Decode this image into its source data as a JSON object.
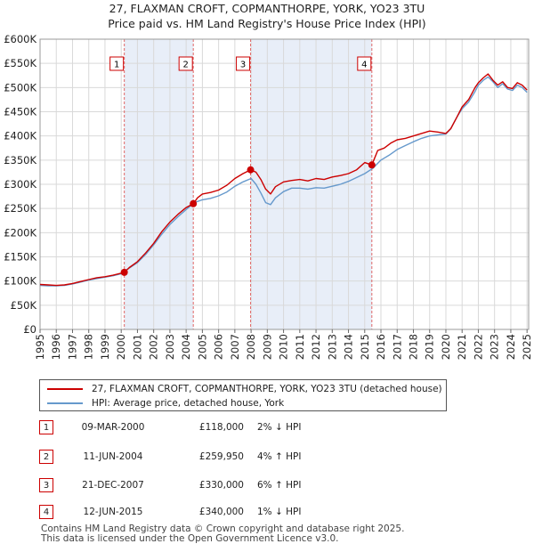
{
  "chart_data": {
    "type": "line",
    "title": "27, FLAXMAN CROFT, COPMANTHORPE, YORK, YO23 3TU",
    "subtitle": "Price paid vs. HM Land Registry's House Price Index (HPI)",
    "xlim": [
      1995,
      2025.1
    ],
    "ylim": [
      0,
      600000
    ],
    "x_ticks": [
      "1995",
      "1996",
      "1997",
      "1998",
      "1999",
      "2000",
      "2001",
      "2002",
      "2003",
      "2004",
      "2005",
      "2006",
      "2007",
      "2008",
      "2009",
      "2010",
      "2011",
      "2012",
      "2013",
      "2014",
      "2015",
      "2016",
      "2017",
      "2018",
      "2019",
      "2020",
      "2021",
      "2022",
      "2023",
      "2024",
      "2025"
    ],
    "y_ticks": [
      {
        "value": 0,
        "label": "£0"
      },
      {
        "value": 50000,
        "label": "£50K"
      },
      {
        "value": 100000,
        "label": "£100K"
      },
      {
        "value": 150000,
        "label": "£150K"
      },
      {
        "value": 200000,
        "label": "£200K"
      },
      {
        "value": 250000,
        "label": "£250K"
      },
      {
        "value": 300000,
        "label": "£300K"
      },
      {
        "value": 350000,
        "label": "£350K"
      },
      {
        "value": 400000,
        "label": "£400K"
      },
      {
        "value": 450000,
        "label": "£450K"
      },
      {
        "value": 500000,
        "label": "£500K"
      },
      {
        "value": 550000,
        "label": "£550K"
      },
      {
        "value": 600000,
        "label": "£600K"
      }
    ],
    "series": [
      {
        "name": "27, FLAXMAN CROFT, COPMANTHORPE, YORK, YO23 3TU (detached house)",
        "color": "#cc0000",
        "x": [
          1995.0,
          1995.5,
          1996.0,
          1996.5,
          1997.0,
          1997.5,
          1998.0,
          1998.5,
          1999.0,
          1999.5,
          2000.19,
          2000.5,
          2001.0,
          2001.5,
          2002.0,
          2002.5,
          2003.0,
          2003.5,
          2004.0,
          2004.44,
          2004.7,
          2005.0,
          2005.5,
          2006.0,
          2006.5,
          2007.0,
          2007.5,
          2007.97,
          2008.3,
          2008.6,
          2008.9,
          2009.2,
          2009.5,
          2010.0,
          2010.5,
          2011.0,
          2011.5,
          2012.0,
          2012.5,
          2013.0,
          2013.5,
          2014.0,
          2014.5,
          2015.0,
          2015.44,
          2015.8,
          2016.2,
          2016.6,
          2017.0,
          2017.5,
          2018.0,
          2018.5,
          2019.0,
          2019.5,
          2020.0,
          2020.3,
          2020.7,
          2021.0,
          2021.4,
          2021.8,
          2022.0,
          2022.3,
          2022.6,
          2022.9,
          2023.2,
          2023.5,
          2023.8,
          2024.1,
          2024.4,
          2024.7,
          2025.0
        ],
        "values": [
          93000,
          92000,
          91000,
          92000,
          95000,
          99000,
          103000,
          107000,
          109000,
          112000,
          118000,
          128000,
          140000,
          158000,
          178000,
          202000,
          222000,
          238000,
          252000,
          259950,
          272000,
          280000,
          283000,
          288000,
          298000,
          312000,
          322000,
          330000,
          325000,
          310000,
          290000,
          280000,
          295000,
          305000,
          308000,
          310000,
          307000,
          312000,
          310000,
          315000,
          318000,
          322000,
          330000,
          345000,
          340000,
          370000,
          375000,
          385000,
          392000,
          395000,
          400000,
          405000,
          410000,
          408000,
          405000,
          415000,
          440000,
          460000,
          475000,
          500000,
          510000,
          520000,
          528000,
          515000,
          505000,
          512000,
          500000,
          498000,
          510000,
          505000,
          495000
        ]
      },
      {
        "name": "HPI: Average price, detached house, York",
        "color": "#6699cc",
        "x": [
          1995.0,
          1995.5,
          1996.0,
          1996.5,
          1997.0,
          1997.5,
          1998.0,
          1998.5,
          1999.0,
          1999.5,
          2000.0,
          2000.5,
          2001.0,
          2001.5,
          2002.0,
          2002.5,
          2003.0,
          2003.5,
          2004.0,
          2004.5,
          2005.0,
          2005.5,
          2006.0,
          2006.5,
          2007.0,
          2007.5,
          2008.0,
          2008.3,
          2008.6,
          2008.9,
          2009.2,
          2009.5,
          2010.0,
          2010.5,
          2011.0,
          2011.5,
          2012.0,
          2012.5,
          2013.0,
          2013.5,
          2014.0,
          2014.5,
          2015.0,
          2015.5,
          2016.0,
          2016.5,
          2017.0,
          2017.5,
          2018.0,
          2018.5,
          2019.0,
          2019.5,
          2020.0,
          2020.3,
          2020.7,
          2021.0,
          2021.4,
          2021.8,
          2022.0,
          2022.3,
          2022.6,
          2022.9,
          2023.2,
          2023.5,
          2023.8,
          2024.1,
          2024.4,
          2024.7,
          2025.0
        ],
        "values": [
          91000,
          90000,
          90000,
          91000,
          94000,
          98000,
          102000,
          105000,
          108000,
          111000,
          115000,
          127000,
          138000,
          155000,
          175000,
          197000,
          217000,
          233000,
          248000,
          262000,
          268000,
          271000,
          276000,
          284000,
          296000,
          305000,
          312000,
          300000,
          282000,
          262000,
          258000,
          272000,
          285000,
          292000,
          292000,
          290000,
          293000,
          292000,
          296000,
          300000,
          306000,
          314000,
          322000,
          333000,
          350000,
          360000,
          372000,
          380000,
          388000,
          395000,
          400000,
          402000,
          404000,
          415000,
          440000,
          456000,
          470000,
          492000,
          505000,
          515000,
          522000,
          512000,
          500000,
          508000,
          497000,
          494000,
          505000,
          500000,
          490000
        ]
      }
    ],
    "sales": [
      {
        "num": "1",
        "year": 2000.19,
        "price": 118000
      },
      {
        "num": "2",
        "year": 2004.44,
        "price": 259950
      },
      {
        "num": "3",
        "year": 2007.97,
        "price": 330000
      },
      {
        "num": "4",
        "year": 2015.44,
        "price": 340000
      }
    ]
  },
  "legend": {
    "property": "27, FLAXMAN CROFT, COPMANTHORPE, YORK, YO23 3TU (detached house)",
    "hpi": "HPI: Average price, detached house, York"
  },
  "transactions": [
    {
      "num": "1",
      "date": "09-MAR-2000",
      "price": "£118,000",
      "hpi": "2% ↓ HPI"
    },
    {
      "num": "2",
      "date": "11-JUN-2004",
      "price": "£259,950",
      "hpi": "4% ↑ HPI"
    },
    {
      "num": "3",
      "date": "21-DEC-2007",
      "price": "£330,000",
      "hpi": "6% ↑ HPI"
    },
    {
      "num": "4",
      "date": "12-JUN-2015",
      "price": "£340,000",
      "hpi": "1% ↓ HPI"
    }
  ],
  "footer": {
    "line1": "Contains HM Land Registry data © Crown copyright and database right 2025.",
    "line2": "This data is licensed under the Open Government Licence v3.0."
  }
}
